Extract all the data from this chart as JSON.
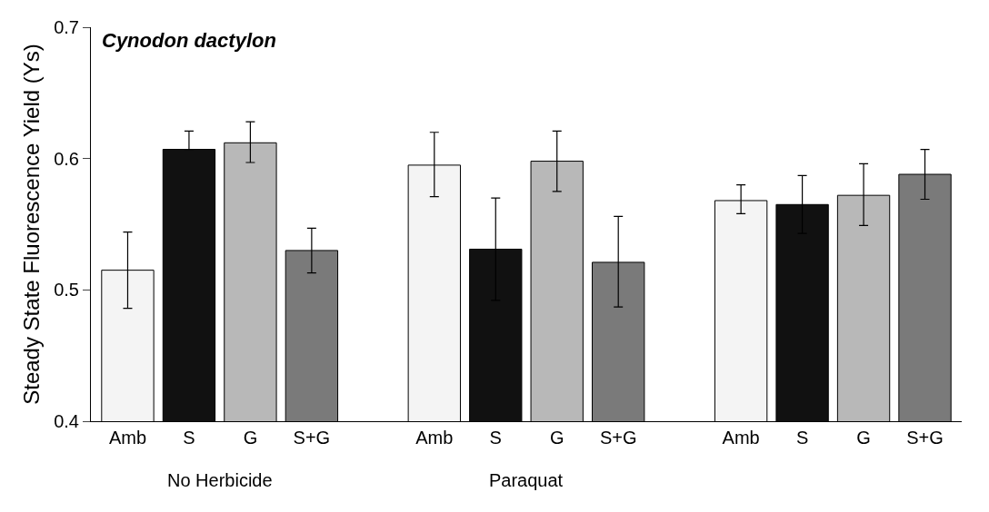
{
  "chart_data": {
    "type": "bar",
    "title": "Cynodon dactylon",
    "ylabel": "Steady State Fluorescence Yield (Ys)",
    "categories": [
      "Amb",
      "S",
      "G",
      "S+G",
      null,
      "Amb",
      "S",
      "G",
      "S+G",
      null,
      "Amb",
      "S",
      "G",
      "S+G"
    ],
    "values": [
      0.515,
      0.607,
      0.612,
      0.53,
      null,
      0.595,
      0.531,
      0.598,
      0.521,
      null,
      0.568,
      0.565,
      0.572,
      0.588
    ],
    "errors": [
      [
        0.486,
        0.544
      ],
      [
        0.607,
        0.621
      ],
      [
        0.597,
        0.628
      ],
      [
        0.513,
        0.547
      ],
      null,
      [
        0.571,
        0.62
      ],
      [
        0.492,
        0.57
      ],
      [
        0.575,
        0.621
      ],
      [
        0.487,
        0.556
      ],
      null,
      [
        0.558,
        0.58
      ],
      [
        0.543,
        0.587
      ],
      [
        0.549,
        0.596
      ],
      [
        0.569,
        0.607
      ]
    ],
    "colors": [
      "#f4f4f4",
      "#111111",
      "#b8b8b8",
      "#7a7a7a",
      null,
      "#f4f4f4",
      "#111111",
      "#b8b8b8",
      "#7a7a7a",
      null,
      "#f4f4f4",
      "#111111",
      "#b8b8b8",
      "#7a7a7a"
    ],
    "annotations": [
      "No Herbicide",
      "Paraquat"
    ],
    "ylim": [
      0.4,
      0.7
    ],
    "yticks": [
      0.4,
      0.5,
      0.6,
      0.7
    ],
    "grid": false,
    "legend": false
  }
}
